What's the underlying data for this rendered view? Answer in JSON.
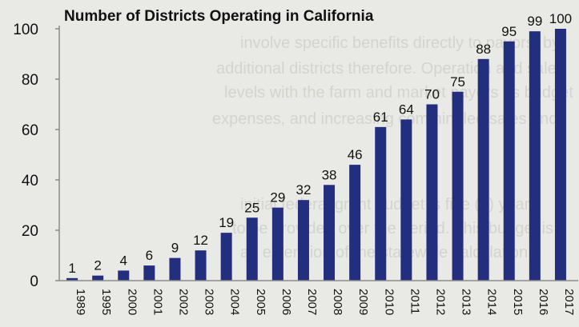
{
  "chart_data": {
    "type": "bar",
    "title": "Number of Districts Operating in California",
    "xlabel": "",
    "ylabel": "",
    "categories": [
      "1989",
      "1995",
      "2000",
      "2001",
      "2002",
      "2003",
      "2004",
      "2005",
      "2006",
      "2007",
      "2008",
      "2009",
      "2010",
      "2011",
      "2012",
      "2013",
      "2014",
      "2015",
      "2016",
      "2017"
    ],
    "values": [
      1,
      2,
      4,
      6,
      9,
      12,
      19,
      25,
      29,
      32,
      38,
      46,
      61,
      64,
      70,
      75,
      88,
      95,
      99,
      100
    ],
    "y_ticks": [
      0,
      20,
      40,
      60,
      80,
      100
    ],
    "ylim": [
      0,
      100
    ],
    "grid": false,
    "legend": "none",
    "bar_color": "#232e7e",
    "axis_color": "#8a8a8a",
    "background_color": "#e9e9e5"
  }
}
